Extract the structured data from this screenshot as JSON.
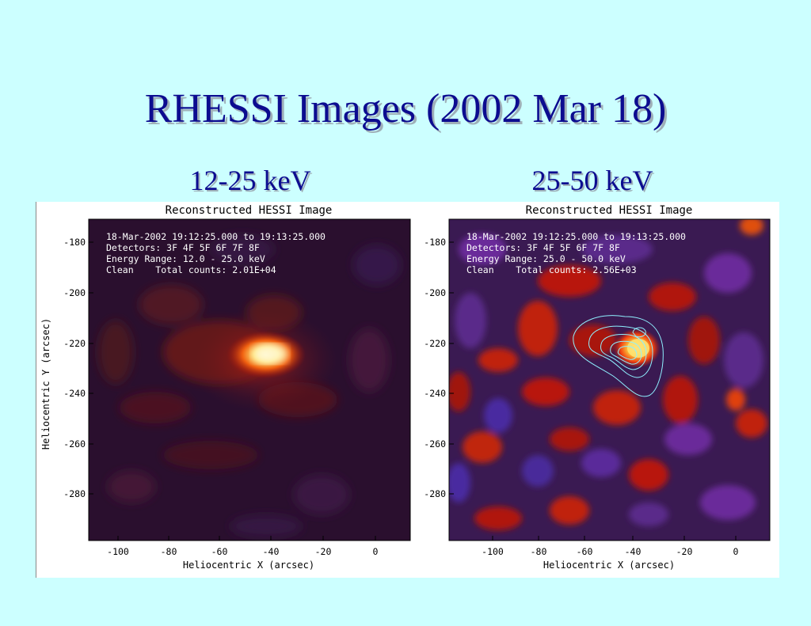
{
  "slide": {
    "title": "RHESSI Images (2002 Mar 18)"
  },
  "panels": [
    {
      "band_label": "12-25 keV",
      "plot_title": "Reconstructed HESSI Image",
      "info_lines": [
        "18-Mar-2002 19:12:25.000 to 19:13:25.000",
        "Detectors: 3F 4F 5F 6F 7F 8F",
        "Energy Range: 12.0 - 25.0 keV",
        "Clean    Total counts: 2.01E+04"
      ],
      "x_axis_label": "Heliocentric X (arcsec)",
      "y_axis_label": "Heliocentric Y (arcsec)",
      "x_ticks": [
        "-100",
        "-80",
        "-60",
        "-40",
        "-20",
        "0"
      ],
      "y_ticks": [
        "-180",
        "-200",
        "-220",
        "-240",
        "-260",
        "-280"
      ],
      "has_contours": false
    },
    {
      "band_label": "25-50 keV",
      "plot_title": "Reconstructed HESSI Image",
      "info_lines": [
        "18-Mar-2002 19:12:25.000 to 19:13:25.000",
        "Detectors: 3F 4F 5F 6F 7F 8F",
        "Energy Range: 25.0 - 50.0 keV",
        "Clean    Total counts: 2.56E+03"
      ],
      "x_axis_label": "Heliocentric X (arcsec)",
      "y_axis_label": "",
      "x_ticks": [
        "-100",
        "-80",
        "-60",
        "-40",
        "-20",
        "0"
      ],
      "y_ticks": [
        "-180",
        "-200",
        "-220",
        "-240",
        "-260",
        "-280"
      ],
      "has_contours": true
    }
  ],
  "colors": {
    "background": "#ccffff",
    "title": "#0c0c90",
    "image_dark": "#2a0f2e",
    "image_purple": "#6a2a8a",
    "image_red": "#c01808",
    "image_hot": "#fff2a0",
    "contour": "#8ff0ff"
  }
}
